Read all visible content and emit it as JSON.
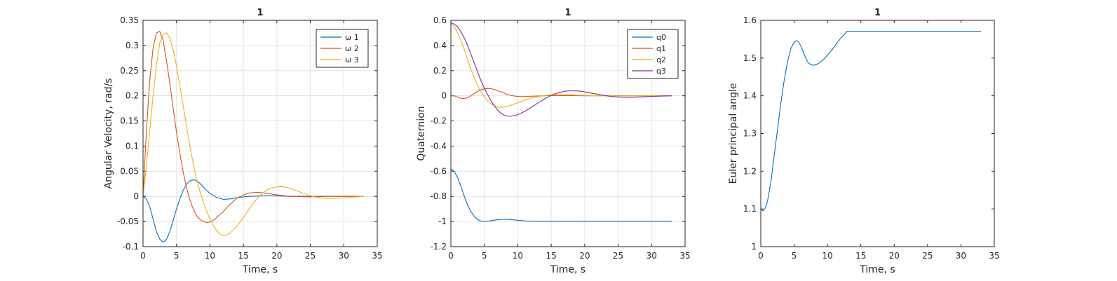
{
  "colors": {
    "series1": "#0072BD",
    "series2": "#D95319",
    "series3": "#EDB120",
    "series4": "#7E2F8E",
    "grid": "#e3e3e3",
    "axis": "#262626"
  },
  "chart_data": [
    {
      "type": "line",
      "title": "1",
      "xlabel": "Time, s",
      "ylabel": "Angular Velocity, rad/s",
      "xlim": [
        0,
        35
      ],
      "ylim": [
        -0.1,
        0.35
      ],
      "xticks": [
        0,
        5,
        10,
        15,
        20,
        25,
        30,
        35
      ],
      "yticks": [
        -0.1,
        -0.05,
        0,
        0.05,
        0.1,
        0.15,
        0.2,
        0.25,
        0.3,
        0.35
      ],
      "xtick_labels": [
        "0",
        "5",
        "10",
        "15",
        "20",
        "25",
        "30",
        "35"
      ],
      "ytick_labels": [
        "-0.1",
        "-0.05",
        "0",
        "0.05",
        "0.1",
        "0.15",
        "0.2",
        "0.25",
        "0.3",
        "0.35"
      ],
      "grid": true,
      "legend": "top-right",
      "series": [
        {
          "name": "ω 1",
          "color": "#0072BD",
          "x": [
            0,
            0.5,
            1,
            1.5,
            2,
            2.5,
            3,
            3.5,
            4,
            4.5,
            5,
            5.5,
            6,
            6.5,
            7,
            7.5,
            8,
            8.5,
            9,
            9.5,
            10,
            11,
            12,
            13,
            14,
            15,
            16,
            18,
            20,
            22,
            25,
            28,
            31,
            33
          ],
          "y": [
            0,
            -0.005,
            -0.02,
            -0.045,
            -0.07,
            -0.085,
            -0.091,
            -0.086,
            -0.07,
            -0.048,
            -0.025,
            -0.005,
            0.012,
            0.024,
            0.031,
            0.033,
            0.031,
            0.026,
            0.019,
            0.012,
            0.006,
            -0.002,
            -0.006,
            -0.005,
            -0.003,
            -0.001,
            0,
            0.001,
            0.001,
            0,
            0,
            0,
            0,
            0
          ]
        },
        {
          "name": "ω 2",
          "color": "#D95319",
          "x": [
            0,
            0.3,
            0.6,
            1,
            1.5,
            2,
            2.5,
            3,
            3.5,
            4,
            4.5,
            5,
            5.5,
            6,
            6.5,
            7,
            7.5,
            8,
            8.5,
            9,
            9.5,
            10,
            10.5,
            11,
            12,
            13,
            14,
            15,
            16,
            17,
            18,
            19,
            20,
            22,
            25,
            28,
            33
          ],
          "y": [
            0,
            0.08,
            0.15,
            0.23,
            0.295,
            0.325,
            0.328,
            0.31,
            0.27,
            0.225,
            0.175,
            0.128,
            0.085,
            0.048,
            0.017,
            -0.007,
            -0.025,
            -0.038,
            -0.046,
            -0.05,
            -0.052,
            -0.051,
            -0.048,
            -0.042,
            -0.03,
            -0.016,
            -0.004,
            0.003,
            0.007,
            0.008,
            0.007,
            0.005,
            0.003,
            0,
            -0.001,
            0,
            0
          ]
        },
        {
          "name": "ω 3",
          "color": "#EDB120",
          "x": [
            0,
            0.5,
            1,
            1.5,
            2,
            2.5,
            3,
            3.5,
            4,
            4.5,
            5,
            5.5,
            6,
            6.5,
            7,
            7.5,
            8,
            8.5,
            9,
            9.5,
            10,
            10.5,
            11,
            11.5,
            12,
            12.5,
            13,
            14,
            15,
            16,
            17,
            18,
            19,
            20,
            21,
            22,
            23,
            24,
            25,
            26,
            27,
            28,
            29,
            30,
            31,
            33
          ],
          "y": [
            0,
            0.06,
            0.13,
            0.2,
            0.26,
            0.305,
            0.322,
            0.325,
            0.315,
            0.292,
            0.26,
            0.22,
            0.18,
            0.14,
            0.1,
            0.065,
            0.035,
            0.01,
            -0.012,
            -0.03,
            -0.045,
            -0.058,
            -0.068,
            -0.075,
            -0.078,
            -0.077,
            -0.073,
            -0.06,
            -0.042,
            -0.022,
            -0.005,
            0.008,
            0.016,
            0.019,
            0.019,
            0.016,
            0.011,
            0.006,
            0.001,
            -0.002,
            -0.004,
            -0.004,
            -0.004,
            -0.003,
            -0.002,
            0
          ]
        }
      ]
    },
    {
      "type": "line",
      "title": "1",
      "xlabel": "Time, s",
      "ylabel": "Quaternion",
      "xlim": [
        0,
        35
      ],
      "ylim": [
        -1.2,
        0.6
      ],
      "xticks": [
        0,
        5,
        10,
        15,
        20,
        25,
        30,
        35
      ],
      "yticks": [
        -1.2,
        -1,
        -0.8,
        -0.6,
        -0.4,
        -0.2,
        0,
        0.2,
        0.4,
        0.6
      ],
      "xtick_labels": [
        "0",
        "5",
        "10",
        "15",
        "20",
        "25",
        "30",
        "35"
      ],
      "ytick_labels": [
        "-1.2",
        "-1",
        "-0.8",
        "-0.6",
        "-0.4",
        "-0.2",
        "0",
        "0.2",
        "0.4",
        "0.6"
      ],
      "grid": true,
      "legend": "top-right",
      "series": [
        {
          "name": "q0",
          "color": "#0072BD",
          "x": [
            0,
            0.5,
            1,
            1.5,
            2,
            2.5,
            3,
            3.5,
            4,
            4.5,
            5,
            5.5,
            6,
            7,
            8,
            9,
            10,
            11,
            12,
            14,
            16,
            20,
            25,
            30,
            33
          ],
          "y": [
            -0.58,
            -0.6,
            -0.65,
            -0.72,
            -0.8,
            -0.87,
            -0.92,
            -0.96,
            -0.985,
            -0.996,
            -1.0,
            -0.998,
            -0.994,
            -0.985,
            -0.982,
            -0.985,
            -0.99,
            -0.995,
            -0.998,
            -1.0,
            -1.0,
            -1.0,
            -1.0,
            -1.0,
            -1.0
          ]
        },
        {
          "name": "q1",
          "color": "#D95319",
          "x": [
            0,
            0.5,
            1,
            1.5,
            2,
            2.5,
            3,
            3.5,
            4,
            4.5,
            5,
            5.5,
            6,
            6.5,
            7,
            7.5,
            8,
            8.5,
            9,
            9.5,
            10,
            11,
            12,
            13,
            14,
            15,
            16,
            18,
            20,
            25,
            33
          ],
          "y": [
            0,
            0,
            -0.01,
            -0.02,
            -0.022,
            -0.015,
            0,
            0.018,
            0.035,
            0.048,
            0.055,
            0.058,
            0.056,
            0.05,
            0.04,
            0.03,
            0.02,
            0.01,
            0.003,
            -0.002,
            -0.005,
            -0.006,
            -0.004,
            -0.002,
            0,
            0.002,
            0.002,
            0.001,
            0,
            0,
            0
          ]
        },
        {
          "name": "q2",
          "color": "#EDB120",
          "x": [
            0,
            0.5,
            1,
            1.5,
            2,
            2.5,
            3,
            3.5,
            4,
            4.5,
            5,
            5.5,
            6,
            6.5,
            7,
            7.5,
            8,
            8.5,
            9,
            10,
            11,
            12,
            13,
            14,
            15,
            16,
            18,
            20,
            22,
            25,
            28,
            33
          ],
          "y": [
            0.57,
            0.55,
            0.5,
            0.44,
            0.37,
            0.29,
            0.21,
            0.14,
            0.08,
            0.03,
            -0.01,
            -0.04,
            -0.065,
            -0.08,
            -0.09,
            -0.092,
            -0.09,
            -0.083,
            -0.075,
            -0.055,
            -0.035,
            -0.02,
            -0.007,
            0.002,
            0.007,
            0.009,
            0.007,
            0.003,
            0,
            -0.002,
            -0.001,
            0
          ]
        },
        {
          "name": "q3",
          "color": "#7E2F8E",
          "x": [
            0,
            0.5,
            1,
            1.5,
            2,
            2.5,
            3,
            3.5,
            4,
            4.5,
            5,
            5.5,
            6,
            6.5,
            7,
            7.5,
            8,
            8.5,
            9,
            9.5,
            10,
            10.5,
            11,
            12,
            13,
            14,
            15,
            16,
            17,
            18,
            19,
            20,
            21,
            22,
            23,
            24,
            25,
            26,
            27,
            28,
            30,
            33
          ],
          "y": [
            0.58,
            0.57,
            0.55,
            0.51,
            0.46,
            0.4,
            0.33,
            0.26,
            0.19,
            0.12,
            0.06,
            0.01,
            -0.04,
            -0.08,
            -0.115,
            -0.14,
            -0.155,
            -0.162,
            -0.162,
            -0.158,
            -0.15,
            -0.138,
            -0.125,
            -0.092,
            -0.058,
            -0.025,
            0.003,
            0.023,
            0.036,
            0.04,
            0.038,
            0.031,
            0.021,
            0.011,
            0.002,
            -0.006,
            -0.01,
            -0.012,
            -0.012,
            -0.01,
            -0.005,
            0
          ]
        }
      ]
    },
    {
      "type": "line",
      "title": "1",
      "xlabel": "Time, s",
      "ylabel": "Euler principal angle",
      "xlim": [
        0,
        35
      ],
      "ylim": [
        1,
        1.6
      ],
      "xticks": [
        0,
        5,
        10,
        15,
        20,
        25,
        30,
        35
      ],
      "yticks": [
        1,
        1.1,
        1.2,
        1.3,
        1.4,
        1.5,
        1.6
      ],
      "xtick_labels": [
        "0",
        "5",
        "10",
        "15",
        "20",
        "25",
        "30",
        "35"
      ],
      "ytick_labels": [
        "1",
        "1.1",
        "1.2",
        "1.3",
        "1.4",
        "1.5",
        "1.6"
      ],
      "grid": false,
      "series": [
        {
          "color": "#0072BD",
          "x": [
            0,
            0.3,
            0.6,
            1,
            1.5,
            2,
            2.5,
            3,
            3.5,
            4,
            4.5,
            5,
            5.3,
            5.6,
            6,
            6.5,
            7,
            7.5,
            8,
            8.5,
            9,
            9.5,
            10,
            10.5,
            11,
            11.5,
            12,
            12.5,
            12.9,
            13,
            15,
            20,
            25,
            30,
            33
          ],
          "y": [
            1.1,
            1.095,
            1.1,
            1.12,
            1.17,
            1.24,
            1.31,
            1.38,
            1.44,
            1.49,
            1.525,
            1.542,
            1.546,
            1.544,
            1.532,
            1.51,
            1.49,
            1.482,
            1.481,
            1.484,
            1.49,
            1.498,
            1.508,
            1.518,
            1.529,
            1.542,
            1.553,
            1.562,
            1.571,
            1.571,
            1.571,
            1.571,
            1.571,
            1.571,
            1.571
          ]
        }
      ]
    }
  ]
}
